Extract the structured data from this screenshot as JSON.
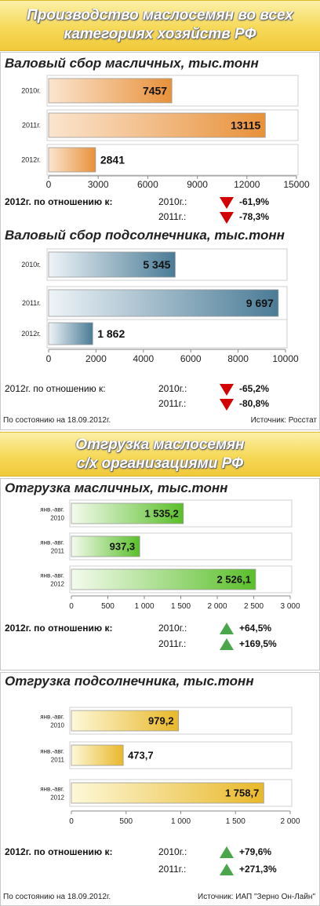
{
  "header1": {
    "line1": "Производство маслосемян во всех",
    "line2": "категориях хозяйств РФ"
  },
  "header2": {
    "line1": "Отгрузка маслосемян",
    "line2": "с/х организациями РФ"
  },
  "colors": {
    "orange": "#e8913a",
    "blue": "#4a7b96",
    "green": "#5bbf2a",
    "gold": "#e9b82a",
    "down": "#d40000",
    "up": "#4aa64a"
  },
  "charts": [
    {
      "id": "c1",
      "chart_data": {
        "type": "bar",
        "title": "Валовый сбор масличных, тыс.тонн",
        "categories": [
          "2010г.",
          "2011г.",
          "2012г."
        ],
        "values": [
          7457,
          13115,
          2841
        ],
        "value_labels": [
          "7457",
          "13115",
          "2841"
        ],
        "xlim": [
          0,
          15000
        ],
        "xticks": [
          "0",
          "3000",
          "6000",
          "9000",
          "12000",
          "15000"
        ],
        "xtick_values": [
          0,
          3000,
          6000,
          9000,
          12000,
          15000
        ]
      },
      "comparison": {
        "label": "2012г. по отношению к:",
        "items": [
          {
            "year": "2010г.:",
            "value": "-61,9%",
            "dir": "down"
          },
          {
            "year": "2011г.:",
            "value": "-78,3%",
            "dir": "down"
          }
        ]
      }
    },
    {
      "id": "c2",
      "chart_data": {
        "type": "bar",
        "title": "Валовый сбор подсолнечника, тыс.тонн",
        "categories": [
          "2010г.",
          "2011г.",
          "2012г."
        ],
        "values": [
          5345,
          9697,
          1862
        ],
        "value_labels": [
          "5 345",
          "9 697",
          "1 862"
        ],
        "xlim": [
          0,
          10000
        ],
        "xticks": [
          "0",
          "2000",
          "4000",
          "6000",
          "8000",
          "10000"
        ],
        "xtick_values": [
          0,
          2000,
          4000,
          6000,
          8000,
          10000
        ]
      },
      "comparison": {
        "label": "2012г. по отношению к:",
        "items": [
          {
            "year": "2010г.:",
            "value": "-65,2%",
            "dir": "down"
          },
          {
            "year": "2011г.:",
            "value": "-80,8%",
            "dir": "down"
          }
        ]
      },
      "footer": {
        "left": "По состоянию на 18.09.2012г.",
        "right": "Источник: Росстат"
      }
    },
    {
      "id": "c3",
      "chart_data": {
        "type": "bar",
        "title": "Отгрузка масличных, тыс.тонн",
        "categories": [
          [
            "янв.-авг.",
            "2010"
          ],
          [
            "янв.-авг.",
            "2011"
          ],
          [
            "янв.-авг.",
            "2012"
          ]
        ],
        "values": [
          1535.2,
          937.3,
          2526.1
        ],
        "value_labels": [
          "1 535,2",
          "937,3",
          "2 526,1"
        ],
        "xlim": [
          0,
          3000
        ],
        "xticks": [
          "0",
          "500",
          "1 000",
          "1 500",
          "2 000",
          "2 500",
          "3 000"
        ],
        "xtick_values": [
          0,
          500,
          1000,
          1500,
          2000,
          2500,
          3000
        ]
      },
      "comparison": {
        "label": "2012г. по отношению к:",
        "items": [
          {
            "year": "2010г.:",
            "value": "+64,5%",
            "dir": "up"
          },
          {
            "year": "2011г.:",
            "value": "+169,5%",
            "dir": "up"
          }
        ]
      }
    },
    {
      "id": "c4",
      "chart_data": {
        "type": "bar",
        "title": "Отгрузка подсолнечника, тыс.тонн",
        "categories": [
          [
            "янв.-авг.",
            "2010"
          ],
          [
            "янв.-авг.",
            "2011"
          ],
          [
            "янв.-авг.",
            "2012"
          ]
        ],
        "values": [
          979.2,
          473.7,
          1758.7
        ],
        "value_labels": [
          "979,2",
          "473,7",
          "1 758,7"
        ],
        "xlim": [
          0,
          2000
        ],
        "xticks": [
          "0",
          "500",
          "1 000",
          "1 500",
          "2 000"
        ],
        "xtick_values": [
          0,
          500,
          1000,
          1500,
          2000
        ]
      },
      "comparison": {
        "label": "2012г. по отношению к:",
        "items": [
          {
            "year": "2010г.:",
            "value": "+79,6%",
            "dir": "up"
          },
          {
            "year": "2011г.:",
            "value": "+271,3%",
            "dir": "up"
          }
        ]
      },
      "footer": {
        "left": "По состоянию на 18.09.2012г.",
        "right": "Источник: ИАП \"Зерно Он-Лайн\""
      }
    }
  ]
}
